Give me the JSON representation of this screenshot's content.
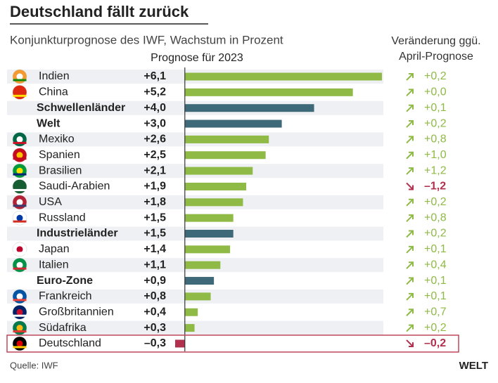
{
  "chart_data": {
    "type": "bar",
    "title": "Deutschland fällt zurück",
    "subtitle": "Konjunkturprognose des IWF, Wachstum in Prozent",
    "source": "Quelle: IWF",
    "logo": "WELT",
    "categories": [
      "Indien",
      "China",
      "Schwellenländer",
      "Welt",
      "Mexiko",
      "Spanien",
      "Brasilien",
      "Saudi-Arabien",
      "USA",
      "Russland",
      "Industrieländer",
      "Japan",
      "Italien",
      "Euro-Zone",
      "Frankreich",
      "Großbritannien",
      "Südafrika",
      "Deutschland"
    ],
    "series": [
      {
        "name": "Prognose für 2023",
        "values": [
          6.1,
          5.2,
          4.0,
          3.0,
          2.6,
          2.5,
          2.1,
          1.9,
          1.8,
          1.5,
          1.5,
          1.4,
          1.1,
          0.9,
          0.8,
          0.4,
          0.3,
          -0.3
        ],
        "value_labels": [
          "+6,1",
          "+5,2",
          "+4,0",
          "+3,0",
          "+2,6",
          "+2,5",
          "+2,1",
          "+1,9",
          "+1,8",
          "+1,5",
          "+1,5",
          "+1,4",
          "+1,1",
          "+0,9",
          "+0,8",
          "+0,4",
          "+0,3",
          "–0,3"
        ],
        "colors": [
          "#8fba45",
          "#8fba45",
          "#3d6978",
          "#3d6978",
          "#8fba45",
          "#8fba45",
          "#8fba45",
          "#8fba45",
          "#8fba45",
          "#8fba45",
          "#3d6978",
          "#8fba45",
          "#8fba45",
          "#3d6978",
          "#8fba45",
          "#8fba45",
          "#8fba45",
          "#b0304e"
        ]
      },
      {
        "name": "Veränderung ggü. April-Prognose",
        "values": [
          0.2,
          0.0,
          0.1,
          0.2,
          0.8,
          1.0,
          1.2,
          -1.2,
          0.2,
          0.8,
          0.2,
          0.1,
          0.4,
          0.1,
          0.1,
          0.7,
          0.2,
          -0.2
        ],
        "value_labels": [
          "+0,2",
          "+0,0",
          "+0,1",
          "+0,2",
          "+0,8",
          "+1,0",
          "+1,2",
          "–1,2",
          "+0,2",
          "+0,8",
          "+0,2",
          "+0,1",
          "+0,4",
          "+0,1",
          "+0,1",
          "+0,7",
          "+0,2",
          "–0,2"
        ],
        "up_color": "#8fba45",
        "down_color": "#b0304e"
      }
    ],
    "xlim": [
      -0.3,
      6.1
    ]
  }
}
